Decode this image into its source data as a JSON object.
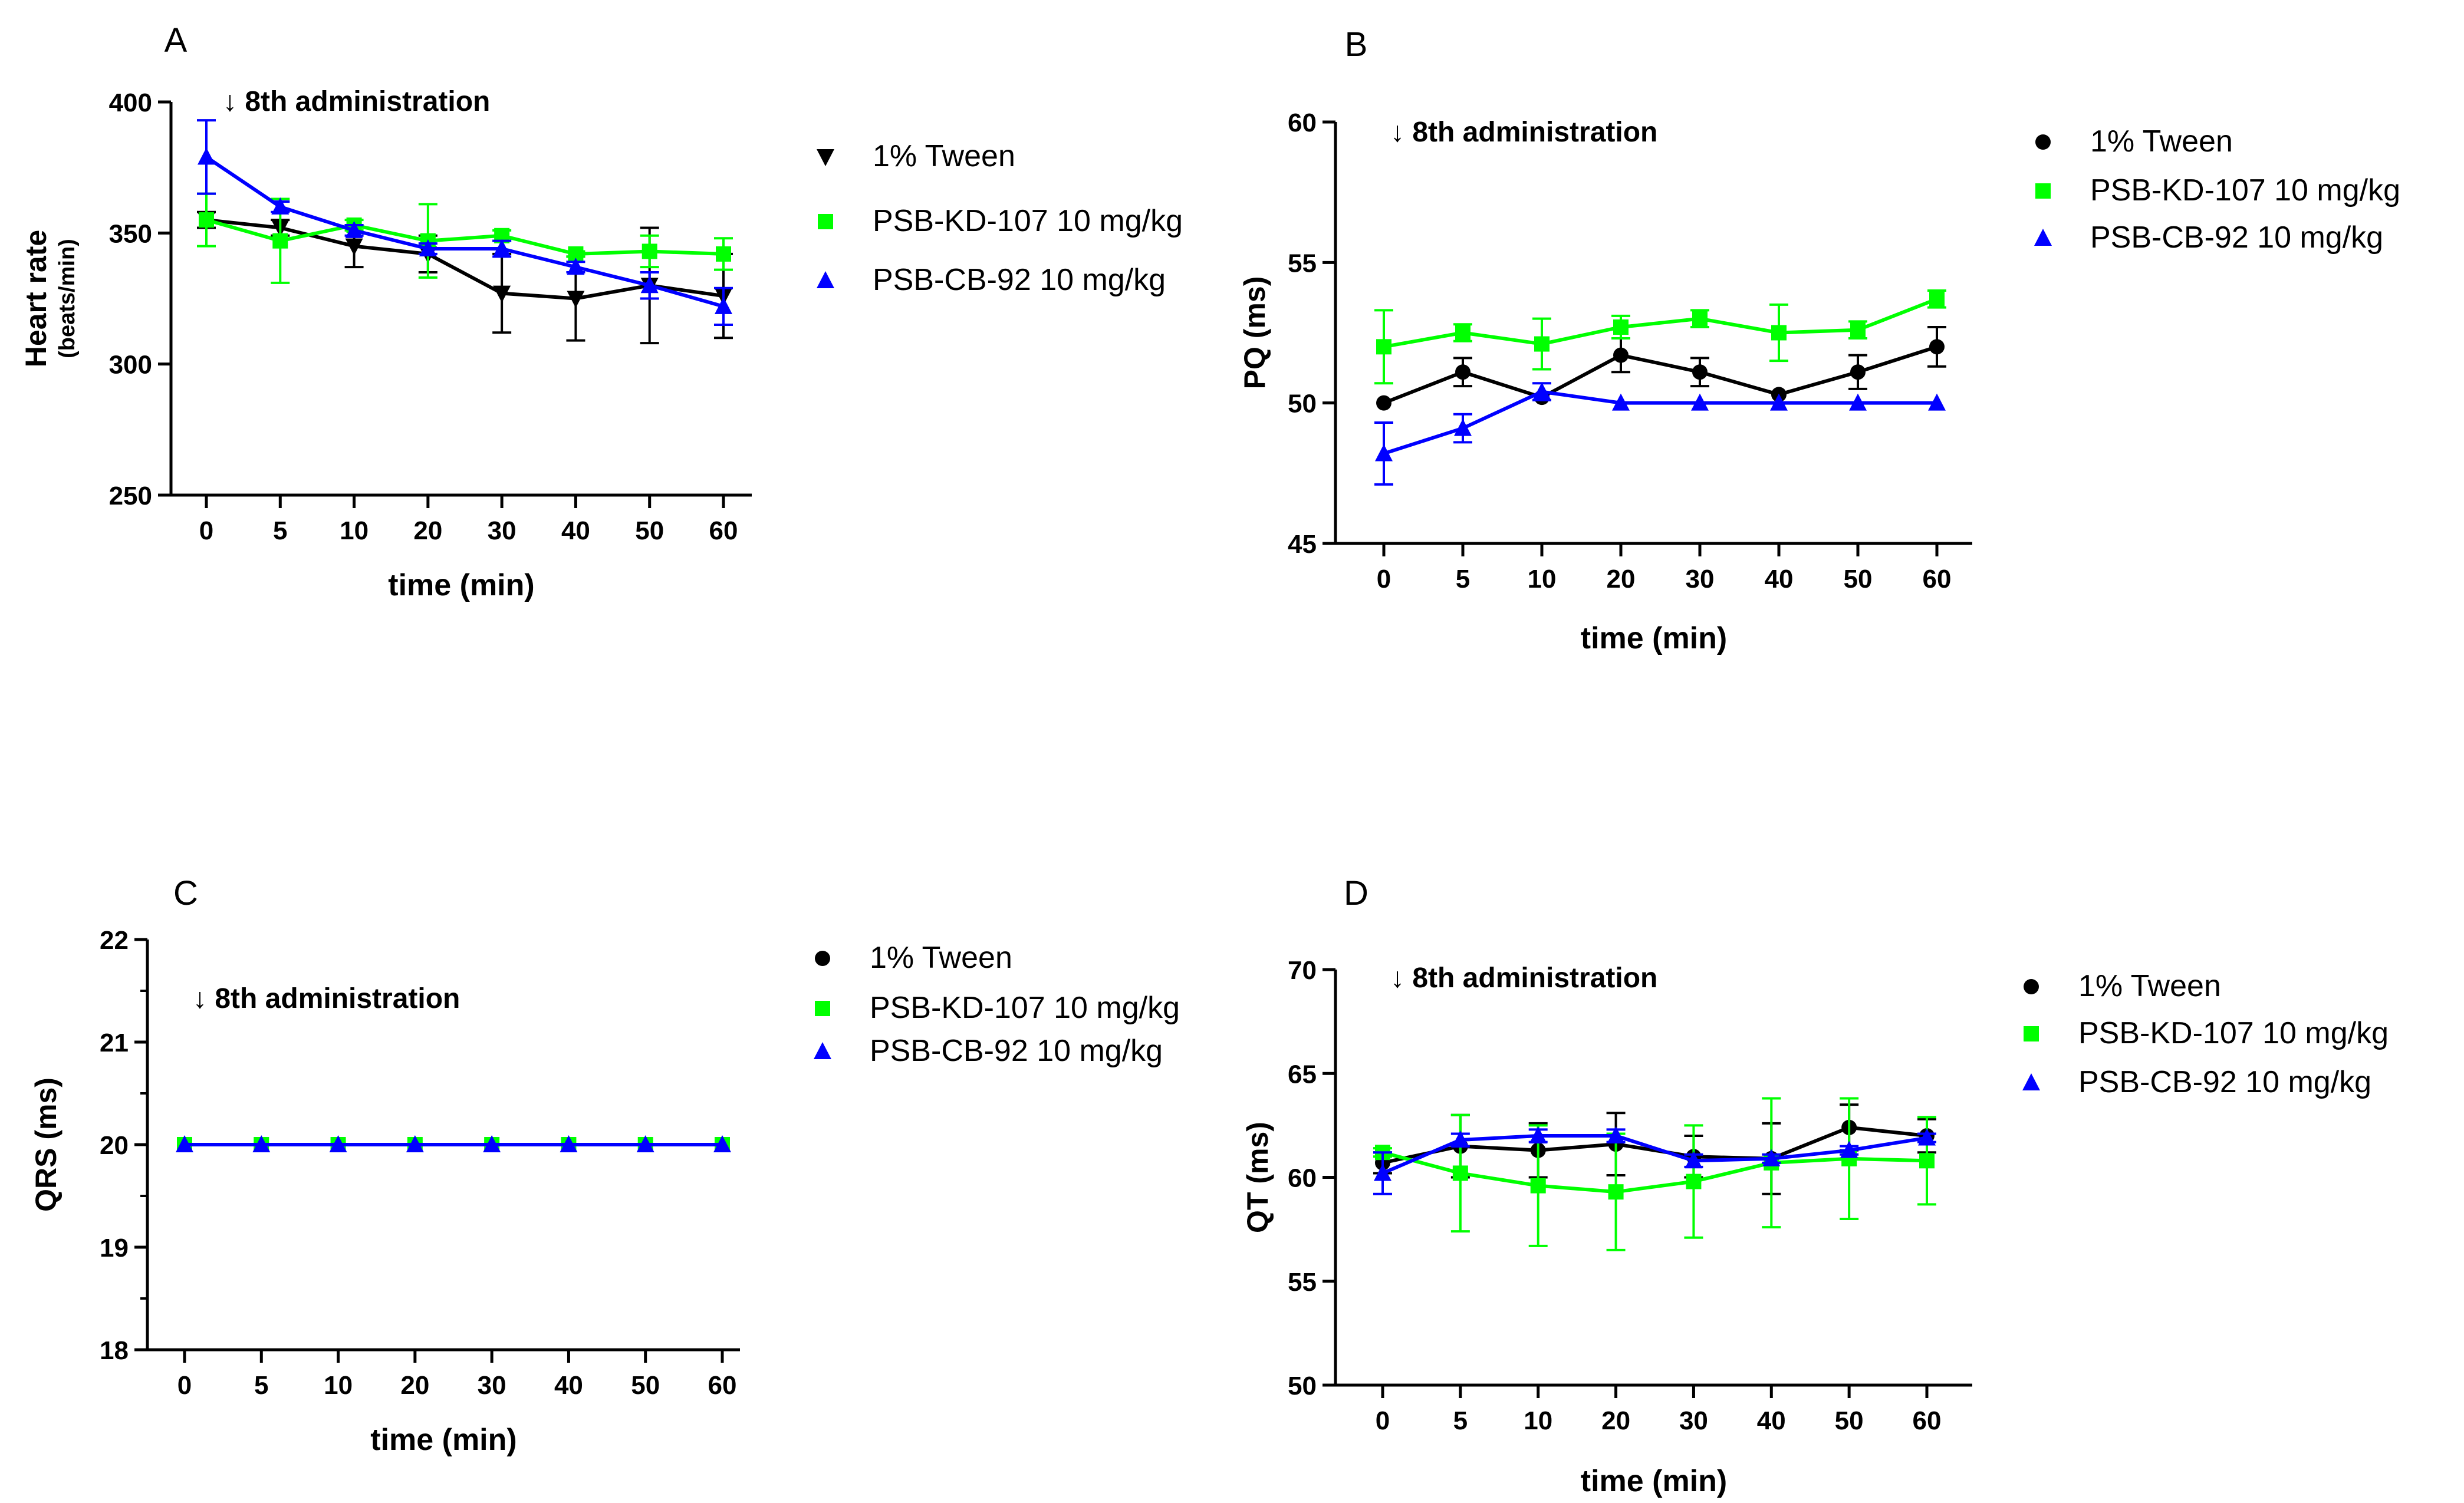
{
  "colors": {
    "tween": "#000000",
    "kd107": "#00ff00",
    "cb92": "#0000ff"
  },
  "chart_data": [
    {
      "panel": "A",
      "type": "line",
      "ylabel": "Heart rate",
      "ylabel_sub": "(beats/min)",
      "xlabel": "time (min)",
      "annotation": "↓ 8th administration",
      "categories": [
        "0",
        "5",
        "10",
        "20",
        "30",
        "40",
        "50",
        "60"
      ],
      "ylim": [
        250,
        400
      ],
      "yticks": [
        250,
        300,
        350,
        400
      ],
      "legend": [
        "1% Tween",
        "PSB-KD-107 10 mg/kg",
        "PSB-CB-92 10 mg/kg"
      ],
      "series": [
        {
          "name": "1% Tween",
          "marker": "triangle-down",
          "color": "#000000",
          "values": [
            355,
            352,
            345,
            342,
            327,
            325,
            330,
            326
          ],
          "errors": [
            3,
            3,
            8,
            7,
            15,
            16,
            22,
            16
          ]
        },
        {
          "name": "PSB-KD-107 10 mg/kg",
          "marker": "square",
          "color": "#00ff00",
          "values": [
            355,
            347,
            353,
            347,
            349,
            342,
            343,
            342
          ],
          "errors": [
            10,
            16,
            2,
            14,
            2,
            1,
            6,
            6
          ]
        },
        {
          "name": "PSB-CB-92 10 mg/kg",
          "marker": "triangle-up",
          "color": "#0000ff",
          "values": [
            379,
            360,
            351,
            344,
            344,
            337,
            330,
            322
          ],
          "errors": [
            14,
            2,
            2,
            2,
            3,
            2,
            5,
            7
          ]
        }
      ]
    },
    {
      "panel": "B",
      "type": "line",
      "ylabel": "PQ (ms)",
      "ylabel_sub": "",
      "xlabel": "time (min)",
      "annotation": "↓ 8th administration",
      "categories": [
        "0",
        "5",
        "10",
        "20",
        "30",
        "40",
        "50",
        "60"
      ],
      "ylim": [
        45,
        60
      ],
      "yticks": [
        45,
        50,
        55,
        60
      ],
      "legend": [
        "1% Tween",
        "PSB-KD-107 10 mg/kg",
        "PSB-CB-92 10 mg/kg"
      ],
      "series": [
        {
          "name": "1% Tween",
          "marker": "circle",
          "color": "#000000",
          "values": [
            50.0,
            51.1,
            50.2,
            51.7,
            51.1,
            50.3,
            51.1,
            52.0
          ],
          "errors": [
            0,
            0.5,
            0,
            0.6,
            0.5,
            0,
            0.6,
            0.7
          ]
        },
        {
          "name": "PSB-KD-107 10 mg/kg",
          "marker": "square",
          "color": "#00ff00",
          "values": [
            52.0,
            52.5,
            52.1,
            52.7,
            53.0,
            52.5,
            52.6,
            53.7
          ],
          "errors": [
            1.3,
            0.3,
            0.9,
            0.4,
            0.3,
            1.0,
            0.3,
            0.3
          ]
        },
        {
          "name": "PSB-CB-92 10 mg/kg",
          "marker": "triangle-up",
          "color": "#0000ff",
          "values": [
            48.2,
            49.1,
            50.4,
            50.0,
            50.0,
            50.0,
            50.0,
            50.0
          ],
          "errors": [
            1.1,
            0.5,
            0.3,
            0,
            0,
            0,
            0,
            0
          ]
        }
      ]
    },
    {
      "panel": "C",
      "type": "line",
      "ylabel": "QRS (ms)",
      "ylabel_sub": "",
      "xlabel": "time (min)",
      "annotation": "↓ 8th administration",
      "categories": [
        "0",
        "5",
        "10",
        "20",
        "30",
        "40",
        "50",
        "60"
      ],
      "ylim": [
        18,
        22
      ],
      "yticks": [
        18,
        19,
        20,
        21,
        22
      ],
      "legend": [
        "1% Tween",
        "PSB-KD-107 10 mg/kg",
        "PSB-CB-92 10 mg/kg"
      ],
      "series": [
        {
          "name": "1% Tween",
          "marker": "circle",
          "color": "#000000",
          "values": [
            20,
            20,
            20,
            20,
            20,
            20,
            20,
            20
          ],
          "errors": [
            0,
            0,
            0,
            0,
            0,
            0,
            0,
            0
          ]
        },
        {
          "name": "PSB-KD-107 10 mg/kg",
          "marker": "square",
          "color": "#00ff00",
          "values": [
            20,
            20,
            20,
            20,
            20,
            20,
            20,
            20
          ],
          "errors": [
            0,
            0,
            0,
            0,
            0,
            0,
            0,
            0
          ]
        },
        {
          "name": "PSB-CB-92 10 mg/kg",
          "marker": "triangle-up",
          "color": "#0000ff",
          "values": [
            20,
            20,
            20,
            20,
            20,
            20,
            20,
            20
          ],
          "errors": [
            0,
            0,
            0,
            0,
            0,
            0,
            0,
            0
          ]
        }
      ]
    },
    {
      "panel": "D",
      "type": "line",
      "ylabel": "QT (ms)",
      "ylabel_sub": "",
      "xlabel": "time (min)",
      "annotation": "↓ 8th administration",
      "categories": [
        "0",
        "5",
        "10",
        "20",
        "30",
        "40",
        "50",
        "60"
      ],
      "ylim": [
        50,
        70
      ],
      "yticks": [
        50,
        55,
        60,
        65,
        70
      ],
      "legend": [
        "1% Tween",
        "PSB-KD-107 10 mg/kg",
        "PSB-CB-92 10 mg/kg"
      ],
      "series": [
        {
          "name": "1% Tween",
          "marker": "circle",
          "color": "#000000",
          "values": [
            60.7,
            61.5,
            61.3,
            61.6,
            61.0,
            60.9,
            62.4,
            62.0
          ],
          "errors": [
            0.5,
            1.5,
            1.3,
            1.5,
            1.0,
            1.7,
            1.1,
            0.8
          ]
        },
        {
          "name": "PSB-KD-107 10 mg/kg",
          "marker": "square",
          "color": "#00ff00",
          "values": [
            61.2,
            60.2,
            59.6,
            59.3,
            59.8,
            60.7,
            60.9,
            60.8
          ],
          "errors": [
            0.2,
            2.8,
            2.9,
            2.8,
            2.7,
            3.1,
            2.9,
            2.1
          ]
        },
        {
          "name": "PSB-CB-92 10 mg/kg",
          "marker": "triangle-up",
          "color": "#0000ff",
          "values": [
            60.2,
            61.8,
            62.0,
            62.0,
            60.8,
            60.9,
            61.3,
            61.9
          ],
          "errors": [
            1.0,
            0.3,
            0.3,
            0.3,
            0.3,
            0.2,
            0.2,
            0.2
          ]
        }
      ]
    }
  ]
}
